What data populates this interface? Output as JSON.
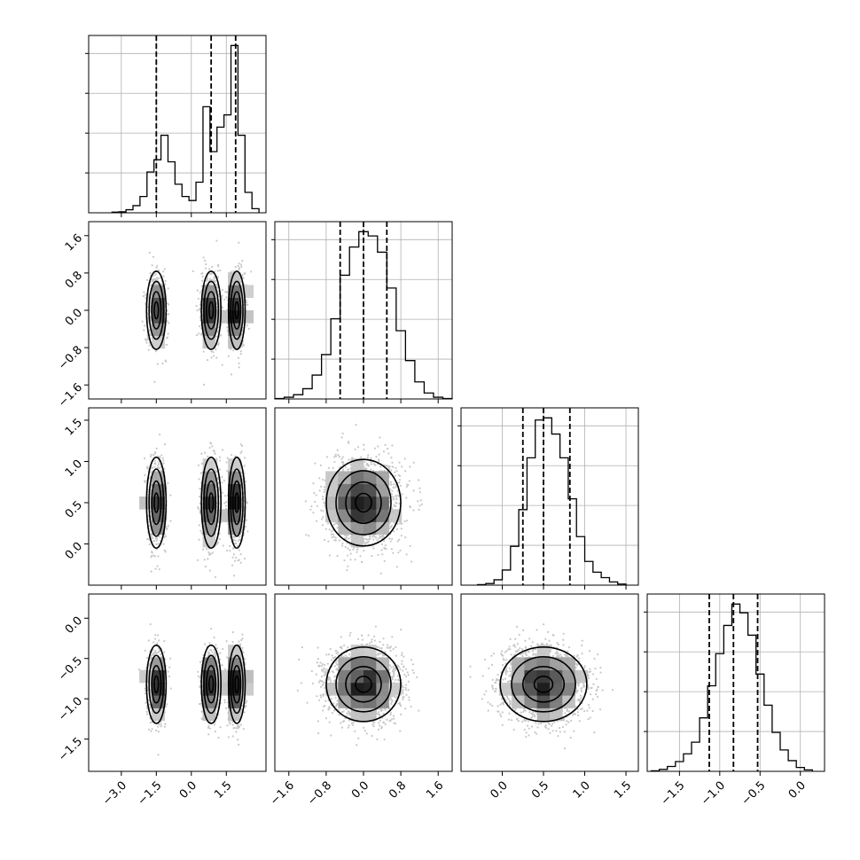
{
  "chart_data": {
    "type": "corner",
    "params": [
      {
        "key": "x0",
        "range": [
          -4.4,
          3.2
        ],
        "ticks": [
          -3.0,
          -1.5,
          0.0,
          1.5
        ],
        "tick_labels": [
          "−3.0",
          "−1.5",
          "0.0",
          "1.5"
        ],
        "quantiles": [
          -1.5,
          0.85,
          1.9
        ],
        "hist": {
          "edges": [
            -3.4,
            -3.1,
            -2.8,
            -2.5,
            -2.2,
            -1.9,
            -1.6,
            -1.3,
            -1.0,
            -0.7,
            -0.4,
            -0.1,
            0.2,
            0.5,
            0.8,
            1.1,
            1.4,
            1.7,
            2.0,
            2.3,
            2.6,
            2.9
          ],
          "counts": [
            0.3,
            0.5,
            1.5,
            3.5,
            8,
            20,
            26,
            38,
            25,
            14,
            8,
            6,
            15,
            52,
            30,
            42,
            48,
            82,
            38,
            10,
            2
          ]
        }
      },
      {
        "key": "x1",
        "range": [
          -1.9,
          1.9
        ],
        "ticks": [
          -1.6,
          -0.8,
          0.0,
          0.8,
          1.6
        ],
        "tick_labels": [
          "−1.6",
          "−0.8",
          "0.0",
          "0.8",
          "1.6"
        ],
        "quantiles": [
          -0.5,
          0.0,
          0.5
        ],
        "hist": {
          "edges": [
            -1.9,
            -1.7,
            -1.5,
            -1.3,
            -1.1,
            -0.9,
            -0.7,
            -0.5,
            -0.3,
            -0.1,
            0.1,
            0.3,
            0.5,
            0.7,
            0.9,
            1.1,
            1.3,
            1.5,
            1.7,
            1.9
          ],
          "counts": [
            0.5,
            2,
            5,
            12,
            28,
            52,
            94,
            145,
            178,
            196,
            191,
            172,
            130,
            80,
            45,
            20,
            7,
            2,
            0.5
          ]
        }
      },
      {
        "key": "x2",
        "range": [
          -0.5,
          1.65
        ],
        "ticks": [
          0.0,
          0.5,
          1.0,
          1.5
        ],
        "tick_labels": [
          "0.0",
          "0.5",
          "1.0",
          "1.5"
        ],
        "quantiles": [
          0.25,
          0.5,
          0.82
        ],
        "hist": {
          "edges": [
            -0.3,
            -0.2,
            -0.1,
            0.0,
            0.1,
            0.2,
            0.3,
            0.4,
            0.5,
            0.6,
            0.7,
            0.8,
            0.9,
            1.0,
            1.1,
            1.2,
            1.3,
            1.4,
            1.5
          ],
          "counts": [
            0.5,
            1.5,
            5,
            14,
            36,
            70,
            118,
            153,
            155,
            140,
            118,
            80,
            45,
            22,
            12,
            7,
            3,
            1
          ]
        }
      },
      {
        "key": "x3",
        "range": [
          -1.9,
          0.3
        ],
        "ticks": [
          -1.5,
          -1.0,
          -0.5,
          0.0
        ],
        "tick_labels": [
          "−1.5",
          "−1.0",
          "−0.5",
          "0.0"
        ],
        "quantiles": [
          -1.13,
          -0.83,
          -0.53
        ],
        "hist": {
          "edges": [
            -1.85,
            -1.75,
            -1.65,
            -1.55,
            -1.45,
            -1.35,
            -1.25,
            -1.15,
            -1.05,
            -0.95,
            -0.85,
            -0.75,
            -0.65,
            -0.55,
            -0.45,
            -0.35,
            -0.25,
            -0.15,
            -0.05,
            0.05,
            0.15
          ],
          "counts": [
            0.5,
            2,
            5,
            10,
            18,
            30,
            55,
            88,
            121,
            150,
            172,
            163,
            140,
            100,
            68,
            40,
            22,
            11,
            4,
            1.5
          ]
        }
      }
    ],
    "modes_x0": [
      {
        "center": -1.5,
        "sigma": 0.2,
        "weight": 0.3
      },
      {
        "center": 0.85,
        "sigma": 0.2,
        "weight": 0.33
      },
      {
        "center": 1.95,
        "sigma": 0.17,
        "weight": 0.37
      }
    ],
    "pair_centers": {
      "x1": 0.0,
      "x2": 0.5,
      "x3": -0.82
    },
    "pair_sigmas": {
      "x1": 0.38,
      "x2": 0.25,
      "x3": 0.22
    },
    "contour_levels": 4,
    "grid": true,
    "hist_style": "step",
    "quantile_lines": "dashed"
  }
}
